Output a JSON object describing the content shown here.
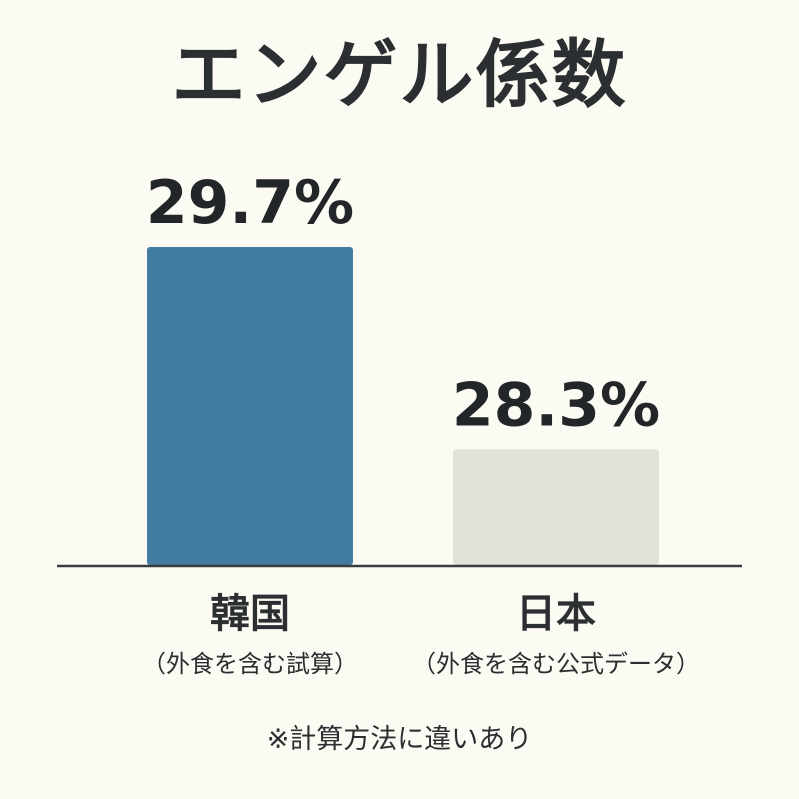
{
  "chart_data": {
    "type": "bar",
    "title": "エンゲル係数",
    "categories": [
      "韓国",
      "日本"
    ],
    "category_notes": [
      "（外食を含む試算）",
      "（外食を含む公式データ）"
    ],
    "values": [
      29.7,
      28.3
    ],
    "value_labels": [
      "29.7%",
      "28.3%"
    ],
    "bar_colors": [
      "#427da1",
      "#e3e2da"
    ],
    "footnote": "※計算方法に違いあり",
    "xlabel": "",
    "ylabel": "",
    "grid": false
  },
  "colors": {
    "background": "#fcfbf3",
    "text": "#2b2f31",
    "korea_bar": "#427da1",
    "japan_bar": "#e3e2da",
    "baseline": "#3a3d3f"
  }
}
